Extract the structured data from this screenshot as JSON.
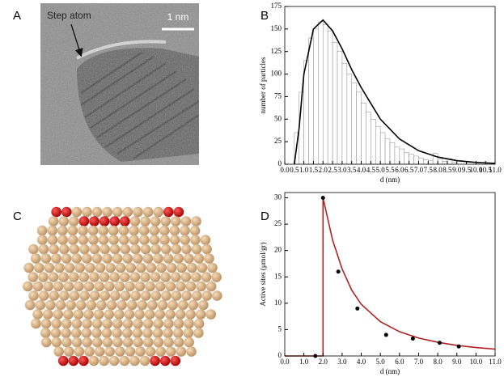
{
  "panel_labels": [
    "A",
    "B",
    "C",
    "D"
  ],
  "micrograph": {
    "annotation": "Step atom",
    "scale_bar": "1 nm"
  },
  "chart_data": [
    {
      "type": "histogram",
      "xlabel": "d (nm)",
      "ylabel": "number of particles",
      "bins": [
        0.5,
        0.75,
        1,
        1.25,
        1.5,
        1.75,
        2,
        2.25,
        2.5,
        2.75,
        3,
        3.25,
        3.5,
        3.75,
        4,
        4.25,
        4.5,
        4.75,
        5,
        5.25,
        5.5,
        5.75,
        6,
        6.25,
        6.5,
        6.75,
        7,
        7.25,
        7.5,
        7.75,
        8,
        8.25,
        8.5,
        8.75,
        9
      ],
      "values": [
        35,
        80,
        115,
        140,
        150,
        158,
        155,
        148,
        135,
        125,
        112,
        100,
        90,
        80,
        68,
        58,
        50,
        42,
        35,
        28,
        24,
        19,
        17,
        13,
        11,
        9,
        7,
        5,
        4,
        12,
        6,
        3,
        6,
        2
      ],
      "bar_color": "#ffffff",
      "edge_color": "#999999",
      "fit": {
        "x": [
          0.5,
          0.75,
          1,
          1.5,
          2,
          2.5,
          3,
          3.5,
          4,
          5,
          6,
          7,
          8,
          9,
          10,
          11
        ],
        "values": [
          0,
          40,
          100,
          150,
          160,
          148,
          128,
          105,
          85,
          50,
          28,
          15,
          8,
          4,
          2,
          1
        ],
        "color": "#000000"
      },
      "xlim": [
        0,
        11
      ],
      "ylim": [
        0,
        175
      ],
      "xticks": [
        {
          "value": 0,
          "label": "0.0"
        },
        {
          "value": 0.5,
          "label": "0.5"
        },
        {
          "value": 1,
          "label": "1.0"
        },
        {
          "value": 1.5,
          "label": "1.5"
        },
        {
          "value": 2,
          "label": "2.0"
        },
        {
          "value": 2.5,
          "label": "2.5"
        },
        {
          "value": 3,
          "label": "3.0"
        },
        {
          "value": 3.5,
          "label": "3.5"
        },
        {
          "value": 4,
          "label": "4.0"
        },
        {
          "value": 4.5,
          "label": "4.5"
        },
        {
          "value": 5,
          "label": "5.0"
        },
        {
          "value": 5.5,
          "label": "5.5"
        },
        {
          "value": 6,
          "label": "6.0"
        },
        {
          "value": 6.5,
          "label": "6.5"
        },
        {
          "value": 7,
          "label": "7.0"
        },
        {
          "value": 7.5,
          "label": "7.5"
        },
        {
          "value": 8,
          "label": "8.0"
        },
        {
          "value": 8.5,
          "label": "8.5"
        },
        {
          "value": 9,
          "label": "9.0"
        },
        {
          "value": 9.5,
          "label": "9.5"
        },
        {
          "value": 10,
          "label": "10.0"
        },
        {
          "value": 10.5,
          "label": "10.5"
        },
        {
          "value": 11,
          "label": "11.0"
        }
      ],
      "yticks": [
        0,
        25,
        50,
        75,
        100,
        125,
        150,
        175
      ]
    },
    {
      "type": "line",
      "xlabel": "d (nm)",
      "ylabel": "Active sites (μmol/gr)",
      "line": {
        "x": [
          0,
          2,
          2,
          2.5,
          3,
          3.5,
          4,
          5,
          6,
          7,
          8,
          9,
          10,
          11
        ],
        "values": [
          0,
          0,
          30,
          22,
          16.5,
          12.5,
          9.8,
          6.5,
          4.6,
          3.4,
          2.6,
          2.0,
          1.6,
          1.3
        ],
        "color": "#b22222"
      },
      "points": {
        "x": [
          1.6,
          2,
          2.8,
          3.8,
          5.3,
          6.7,
          8.1,
          9.1
        ],
        "values": [
          0,
          30,
          16,
          9,
          4,
          3.3,
          2.5,
          1.8
        ],
        "color": "#000000"
      },
      "xlim": [
        0,
        11
      ],
      "ylim": [
        0,
        31
      ],
      "xticks": [
        {
          "value": 0,
          "label": "0.0"
        },
        {
          "value": 1,
          "label": "1.0"
        },
        {
          "value": 2,
          "label": "2.0"
        },
        {
          "value": 3,
          "label": "3.0"
        },
        {
          "value": 4,
          "label": "4.0"
        },
        {
          "value": 5,
          "label": "5.0"
        },
        {
          "value": 6,
          "label": "6.0"
        },
        {
          "value": 7,
          "label": "7.0"
        },
        {
          "value": 8,
          "label": "8.0"
        },
        {
          "value": 9,
          "label": "9.0"
        },
        {
          "value": 10,
          "label": "10.0"
        },
        {
          "value": 11,
          "label": "11.0"
        }
      ],
      "yticks": [
        0,
        5,
        10,
        15,
        20,
        25,
        30
      ]
    }
  ]
}
